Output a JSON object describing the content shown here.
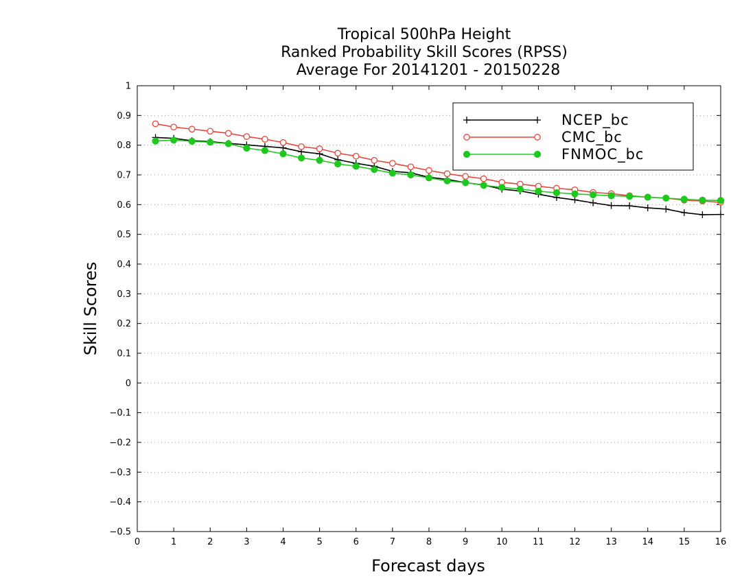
{
  "chart_data": {
    "type": "line",
    "title_lines": [
      "Tropical 500hPa Height",
      "Ranked Probability Skill Scores (RPSS)",
      "Average For 20141201 - 20150228"
    ],
    "xlabel": "Forecast days",
    "ylabel": "Skill Scores",
    "xlim": [
      0,
      16
    ],
    "ylim": [
      -0.5,
      1
    ],
    "xticks": [
      0,
      1,
      2,
      3,
      4,
      5,
      6,
      7,
      8,
      9,
      10,
      11,
      12,
      13,
      14,
      15,
      16
    ],
    "xtick_labels": [
      "0",
      "1",
      "2",
      "3",
      "4",
      "5",
      "6",
      "7",
      "8",
      "9",
      "10",
      "11",
      "12",
      "13",
      "14",
      "15",
      "16"
    ],
    "yticks": [
      -0.5,
      -0.4,
      -0.3,
      -0.2,
      -0.1,
      0,
      0.1,
      0.2,
      0.3,
      0.4,
      0.5,
      0.6,
      0.7,
      0.8,
      0.9,
      1
    ],
    "ytick_labels": [
      "−0.5",
      "−0.4",
      "−0.3",
      "−0.2",
      "−0.1",
      "0",
      "0.1",
      "0.2",
      "0.3",
      "0.4",
      "0.5",
      "0.6",
      "0.7",
      "0.8",
      "0.9",
      "1"
    ],
    "grid": "horizontal-dotted",
    "legend_position": "top-right",
    "x": [
      0.5,
      1,
      1.5,
      2,
      2.5,
      3,
      3.5,
      4,
      4.5,
      5,
      5.5,
      6,
      6.5,
      7,
      7.5,
      8,
      8.5,
      9,
      9.5,
      10,
      10.5,
      11,
      11.5,
      12,
      12.5,
      13,
      13.5,
      14,
      14.5,
      15,
      15.5,
      16
    ],
    "series": [
      {
        "name": "NCEP_bc",
        "color": "#000000",
        "marker": "plus",
        "values": [
          0.826,
          0.823,
          0.815,
          0.812,
          0.806,
          0.801,
          0.796,
          0.791,
          0.778,
          0.771,
          0.751,
          0.739,
          0.729,
          0.712,
          0.707,
          0.692,
          0.685,
          0.674,
          0.666,
          0.652,
          0.646,
          0.635,
          0.624,
          0.616,
          0.606,
          0.597,
          0.596,
          0.589,
          0.585,
          0.573,
          0.566,
          0.567
        ]
      },
      {
        "name": "CMC_bc",
        "color": "#e8443a",
        "marker": "open-circle",
        "values": [
          0.872,
          0.861,
          0.854,
          0.847,
          0.84,
          0.829,
          0.82,
          0.809,
          0.795,
          0.788,
          0.773,
          0.763,
          0.749,
          0.739,
          0.727,
          0.715,
          0.704,
          0.695,
          0.687,
          0.675,
          0.669,
          0.662,
          0.655,
          0.65,
          0.641,
          0.637,
          0.63,
          0.625,
          0.622,
          0.615,
          0.612,
          0.608
        ]
      },
      {
        "name": "FNMOC_bc",
        "color": "#1ec81e",
        "marker": "filled-circle",
        "values": [
          0.814,
          0.817,
          0.813,
          0.81,
          0.805,
          0.79,
          0.782,
          0.771,
          0.757,
          0.749,
          0.737,
          0.729,
          0.718,
          0.706,
          0.7,
          0.69,
          0.68,
          0.674,
          0.665,
          0.658,
          0.652,
          0.645,
          0.64,
          0.636,
          0.633,
          0.63,
          0.628,
          0.625,
          0.622,
          0.618,
          0.615,
          0.614
        ]
      }
    ]
  }
}
